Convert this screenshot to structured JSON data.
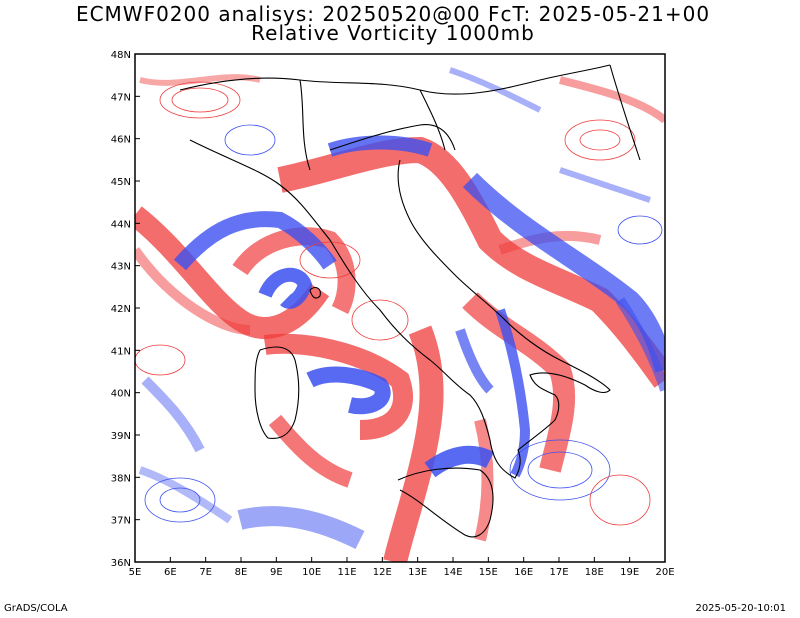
{
  "header": {
    "title_line1": "ECMWF0200 analisys: 20250520@00 FcT: 2025-05-21+00",
    "title_line2": "Relative Vorticity 1000mb"
  },
  "footer": {
    "left": "GrADS/COLA",
    "right": "2025-05-20-10:01"
  },
  "map": {
    "lon_labels": [
      "5E",
      "6E",
      "7E",
      "8E",
      "9E",
      "10E",
      "11E",
      "12E",
      "13E",
      "14E",
      "15E",
      "16E",
      "17E",
      "18E",
      "19E",
      "20E"
    ],
    "lat_labels": [
      "48N",
      "47N",
      "46N",
      "45N",
      "44N",
      "43N",
      "42N",
      "41N",
      "40N",
      "39N",
      "38N",
      "37N",
      "36N"
    ],
    "extent": {
      "lon": [
        5,
        20
      ],
      "lat": [
        36,
        48
      ]
    },
    "colors": {
      "positive": "#f03c3c",
      "negative": "#3c50f0",
      "coast": "#000000"
    }
  }
}
